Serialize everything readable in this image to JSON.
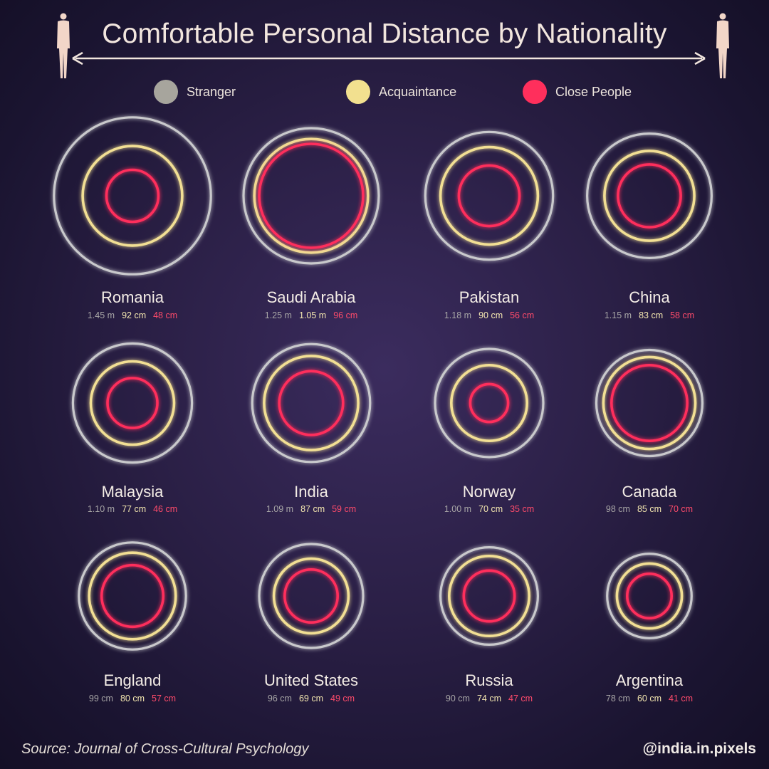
{
  "title": "Comfortable Personal Distance by Nationality",
  "legend": [
    {
      "label": "Stranger",
      "color": "#a7a59d"
    },
    {
      "label": "Acquaintance",
      "color": "#f2e08f"
    },
    {
      "label": "Close People",
      "color": "#ff2f5c"
    }
  ],
  "colors": {
    "stranger": "#c9c9cc",
    "acquaintance": "#f2df94",
    "close": "#ff2f5c"
  },
  "chart_data": {
    "type": "concentric-circles",
    "title": "Comfortable Personal Distance by Nationality",
    "unit": "m",
    "series_names": [
      "Stranger",
      "Acquaintance",
      "Close People"
    ],
    "countries": [
      {
        "name": "Romania",
        "stranger": 1.45,
        "acquaintance": 0.92,
        "close": 0.48,
        "labels": [
          "1.45 m",
          "92 cm",
          "48 cm"
        ]
      },
      {
        "name": "Saudi Arabia",
        "stranger": 1.25,
        "acquaintance": 1.05,
        "close": 0.96,
        "labels": [
          "1.25 m",
          "1.05 m",
          "96 cm"
        ]
      },
      {
        "name": "Pakistan",
        "stranger": 1.18,
        "acquaintance": 0.9,
        "close": 0.56,
        "labels": [
          "1.18 m",
          "90 cm",
          "56 cm"
        ]
      },
      {
        "name": "China",
        "stranger": 1.15,
        "acquaintance": 0.83,
        "close": 0.58,
        "labels": [
          "1.15 m",
          "83 cm",
          "58 cm"
        ]
      },
      {
        "name": "Malaysia",
        "stranger": 1.1,
        "acquaintance": 0.77,
        "close": 0.46,
        "labels": [
          "1.10 m",
          "77 cm",
          "46 cm"
        ]
      },
      {
        "name": "India",
        "stranger": 1.09,
        "acquaintance": 0.87,
        "close": 0.59,
        "labels": [
          "1.09 m",
          "87 cm",
          "59 cm"
        ]
      },
      {
        "name": "Norway",
        "stranger": 1.0,
        "acquaintance": 0.7,
        "close": 0.35,
        "labels": [
          "1.00 m",
          "70 cm",
          "35 cm"
        ]
      },
      {
        "name": "Canada",
        "stranger": 0.98,
        "acquaintance": 0.85,
        "close": 0.7,
        "labels": [
          "98 cm",
          "85 cm",
          "70 cm"
        ]
      },
      {
        "name": "England",
        "stranger": 0.99,
        "acquaintance": 0.8,
        "close": 0.57,
        "labels": [
          "99 cm",
          "80 cm",
          "57 cm"
        ]
      },
      {
        "name": "United States",
        "stranger": 0.96,
        "acquaintance": 0.69,
        "close": 0.49,
        "labels": [
          "96 cm",
          "69 cm",
          "49 cm"
        ]
      },
      {
        "name": "Russia",
        "stranger": 0.9,
        "acquaintance": 0.74,
        "close": 0.47,
        "labels": [
          "90 cm",
          "74 cm",
          "47 cm"
        ]
      },
      {
        "name": "Argentina",
        "stranger": 0.78,
        "acquaintance": 0.6,
        "close": 0.41,
        "labels": [
          "78 cm",
          "60 cm",
          "41 cm"
        ]
      }
    ]
  },
  "footer": {
    "source": "Source: Journal of Cross-Cultural Psychology",
    "handle": "@india.in.pixels"
  }
}
